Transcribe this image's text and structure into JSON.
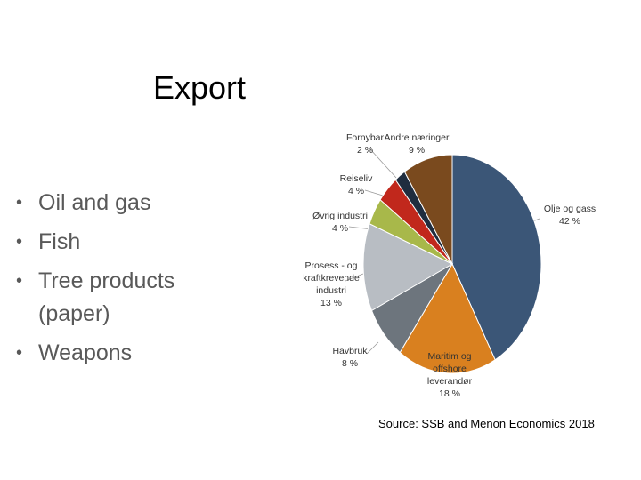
{
  "slide": {
    "title": "Export",
    "bullets": [
      "Oil and gas",
      "Fish",
      "Tree products (paper)",
      "Weapons"
    ],
    "source": "Source: SSB and Menon Economics 2018"
  },
  "chart_data": {
    "type": "pie",
    "categories": [
      "Olje og gass",
      "Maritim og offshore leverandør",
      "Havbruk",
      "Prosess - og kraftkrevende industri",
      "Øvrig industri",
      "Reiseliv",
      "Fornybar",
      "Andre næringer"
    ],
    "values": [
      42,
      18,
      8,
      13,
      4,
      4,
      2,
      9
    ],
    "value_labels": [
      "42 %",
      "18 %",
      "8 %",
      "13 %",
      "4 %",
      "4 %",
      "2 %",
      "9 %"
    ],
    "colors": [
      "#3b5677",
      "#d9801f",
      "#6d757d",
      "#b8bdc3",
      "#a8b84a",
      "#c1281c",
      "#1f2d3f",
      "#7a4a1e"
    ]
  }
}
